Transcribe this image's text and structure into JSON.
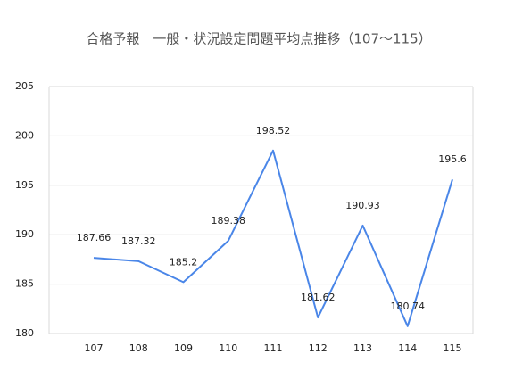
{
  "chart_data": {
    "type": "line",
    "title": "合格予報　一般・状況設定問題平均点推移（107〜115）",
    "categories": [
      "107",
      "108",
      "109",
      "110",
      "111",
      "112",
      "113",
      "114",
      "115"
    ],
    "series": [
      {
        "color": "#4a86e8",
        "values": [
          187.66,
          187.32,
          185.2,
          189.38,
          198.52,
          181.62,
          190.93,
          180.74,
          195.6
        ]
      }
    ],
    "ylim": [
      180,
      205
    ],
    "yticks": [
      180,
      185,
      190,
      195,
      200,
      205
    ],
    "grid": true
  }
}
